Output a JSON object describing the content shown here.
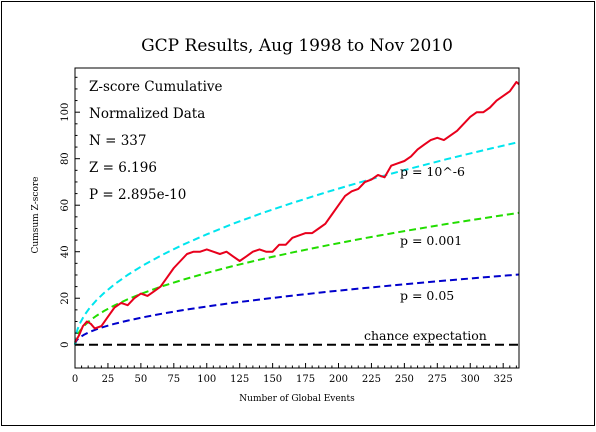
{
  "chart_data": {
    "type": "line",
    "title": "GCP Results, Aug 1998 to Nov 2010",
    "xlabel": "Number of Global Events",
    "ylabel": "Cumsum Z-score",
    "xlim": [
      0,
      337
    ],
    "ylim": [
      -10,
      119
    ],
    "xticks": [
      "0",
      "25",
      "50",
      "75",
      "100",
      "125",
      "150",
      "175",
      "200",
      "225",
      "250",
      "275",
      "300",
      "325"
    ],
    "yticks": [
      "0",
      "20",
      "40",
      "60",
      "80",
      "100"
    ],
    "grid": false,
    "stats": {
      "line1": "Z-score Cumulative",
      "line2": "Normalized Data",
      "line3": "N = 337",
      "line4": "Z = 6.196",
      "line5": "P = 2.895e-10"
    },
    "colors": {
      "data": "#e8001c",
      "p_1e6": "#00e5ee",
      "p_001": "#22dd00",
      "p_05": "#0000cc",
      "chance": "#000000",
      "background": "#ffffff",
      "frame": "#000000"
    },
    "series": [
      {
        "name": "Cumulative Z-score",
        "style": "solid",
        "x": [
          0,
          3,
          6,
          9,
          12,
          15,
          20,
          25,
          30,
          35,
          40,
          45,
          50,
          55,
          60,
          65,
          70,
          75,
          80,
          85,
          90,
          95,
          100,
          105,
          110,
          115,
          120,
          125,
          130,
          135,
          140,
          145,
          150,
          155,
          160,
          165,
          170,
          175,
          180,
          185,
          190,
          195,
          200,
          205,
          210,
          215,
          220,
          225,
          230,
          235,
          240,
          245,
          250,
          255,
          260,
          265,
          270,
          275,
          280,
          285,
          290,
          295,
          300,
          305,
          310,
          315,
          320,
          325,
          330,
          335,
          337
        ],
        "y": [
          1,
          4,
          8,
          10,
          9,
          7,
          8,
          12,
          16,
          18,
          17,
          20,
          22,
          21,
          23,
          25,
          29,
          33,
          36,
          39,
          40,
          40,
          41,
          40,
          39,
          40,
          38,
          36,
          38,
          40,
          41,
          40,
          40,
          43,
          43,
          46,
          47,
          48,
          48,
          50,
          52,
          56,
          60,
          64,
          66,
          67,
          70,
          71,
          73,
          72,
          77,
          78,
          79,
          81,
          84,
          86,
          88,
          89,
          88,
          90,
          92,
          95,
          98,
          100,
          100,
          102,
          105,
          107,
          109,
          113,
          112
        ]
      },
      {
        "name": "p = 10^-6",
        "style": "dashed",
        "x": [
          0,
          1,
          2,
          4,
          7,
          11,
          16,
          22,
          30,
          40,
          52,
          66,
          82,
          100,
          120,
          142,
          166,
          192,
          220,
          250,
          282,
          316,
          337
        ],
        "y": [
          0,
          4.75,
          6.71,
          9.49,
          12.56,
          15.75,
          19.0,
          22.27,
          26.0,
          30.04,
          34.25,
          38.59,
          43.0,
          47.5,
          52.03,
          56.6,
          61.18,
          65.81,
          70.45,
          75.11,
          79.77,
          84.43,
          87.2
        ]
      },
      {
        "name": "p = 0.001",
        "style": "dashed",
        "x": [
          0,
          1,
          2,
          4,
          7,
          11,
          16,
          22,
          30,
          40,
          52,
          66,
          82,
          100,
          120,
          142,
          166,
          192,
          220,
          250,
          282,
          316,
          337
        ],
        "y": [
          0,
          3.09,
          4.37,
          6.18,
          8.18,
          10.25,
          12.36,
          14.5,
          16.93,
          19.54,
          22.28,
          25.11,
          27.99,
          30.9,
          33.85,
          36.82,
          39.81,
          42.82,
          45.84,
          48.87,
          51.9,
          54.94,
          56.73
        ]
      },
      {
        "name": "p = 0.05",
        "style": "dashed",
        "x": [
          0,
          1,
          2,
          4,
          7,
          11,
          16,
          22,
          30,
          40,
          52,
          66,
          82,
          100,
          120,
          142,
          166,
          192,
          220,
          250,
          282,
          316,
          337
        ],
        "y": [
          0,
          1.64,
          2.33,
          3.29,
          4.35,
          5.46,
          6.58,
          7.71,
          9.01,
          10.4,
          11.86,
          13.36,
          14.9,
          16.45,
          18.02,
          19.6,
          21.19,
          22.79,
          24.4,
          26.01,
          27.63,
          29.24,
          30.2
        ]
      },
      {
        "name": "chance expectation",
        "style": "dashed",
        "x": [
          0,
          337
        ],
        "y": [
          0,
          0
        ]
      }
    ],
    "curve_labels": {
      "p_1e6": "p = 10^-6",
      "p_001": "p = 0.001",
      "p_05": "p = 0.05",
      "chance": "chance expectation"
    }
  }
}
